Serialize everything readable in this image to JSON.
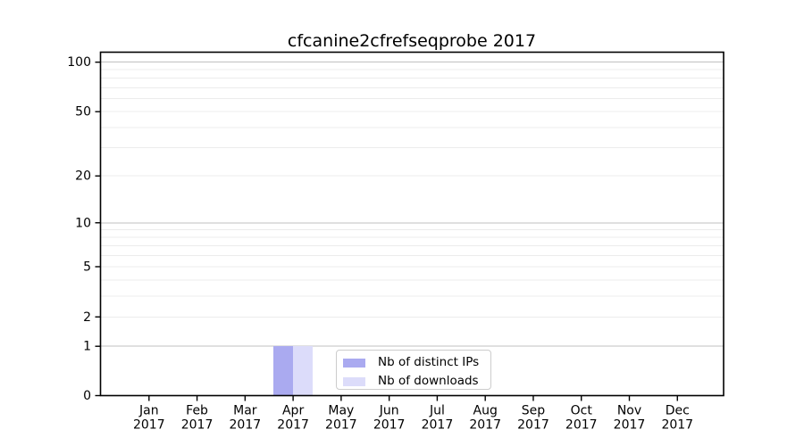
{
  "chart_data": {
    "type": "bar",
    "title": "cfcanine2cfrefseqprobe 2017",
    "categories": [
      "Jan",
      "Feb",
      "Mar",
      "Apr",
      "May",
      "Jun",
      "Jul",
      "Aug",
      "Sep",
      "Oct",
      "Nov",
      "Dec"
    ],
    "x_tick_second_line": "2017",
    "series": [
      {
        "name": "Nb of distinct IPs",
        "color": "#aaaaf0",
        "values": [
          0,
          0,
          0,
          1,
          0,
          0,
          0,
          0,
          0,
          0,
          0,
          0
        ]
      },
      {
        "name": "Nb of downloads",
        "color": "#dcdcfa",
        "values": [
          0,
          0,
          0,
          1,
          0,
          0,
          0,
          0,
          0,
          0,
          0,
          0
        ]
      }
    ],
    "y_axis": {
      "scale": "log1p",
      "tick_labels": [
        0,
        1,
        2,
        5,
        10,
        20,
        50,
        100
      ],
      "major_gridlines": [
        1,
        10,
        100
      ],
      "minor_gridlines": [
        2,
        3,
        4,
        5,
        6,
        7,
        8,
        9,
        20,
        30,
        40,
        50,
        60,
        70,
        80,
        90
      ],
      "range": [
        0,
        115
      ]
    },
    "xlabel": "",
    "ylabel": "",
    "grid": true,
    "legend_position": "lower center",
    "colors": {
      "grid_major": "#c0c0c0",
      "grid_minor": "#ececec",
      "axis": "#000000",
      "legend_border": "#cccccc",
      "background": "#ffffff"
    }
  }
}
